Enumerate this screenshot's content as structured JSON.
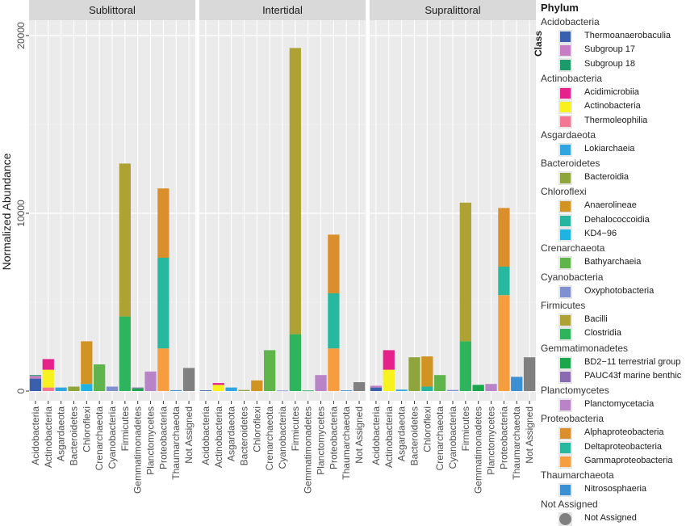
{
  "chart_data": {
    "type": "bar",
    "stacked": true,
    "facets": [
      "Sublittoral",
      "Intertidal",
      "Supralittoral"
    ],
    "categories": [
      "Acidobacteria",
      "Actinobacteria",
      "Asgardaeota",
      "Bacteroidetes",
      "Chloroflexi",
      "Crenarchaeota",
      "Cyanobacteria",
      "Firmicutes",
      "Gemmatimonadetes",
      "Planctomycetes",
      "Proteobacteria",
      "Thaumarchaeota",
      "Not Assigned"
    ],
    "ylabel": "Normalized Abundance",
    "xlabel": "",
    "ylim": [
      0,
      20500
    ],
    "yticks": [
      0,
      10000,
      20000
    ],
    "ytick_labels": [
      "0",
      "10000",
      "20000"
    ],
    "grid": true,
    "legend_position": "right",
    "legend_title": "Phylum",
    "legend_subtitle": "Class",
    "legend_groups": [
      {
        "phylum": "Acidobacteria",
        "classes": [
          "Thermoanaerobaculia",
          "Subgroup 17",
          "Subgroup 18"
        ]
      },
      {
        "phylum": "Actinobacteria",
        "classes": [
          "Acidimicrobiia",
          "Actinobacteria",
          "Thermoleophilia"
        ]
      },
      {
        "phylum": "Asgardaeota",
        "classes": [
          "Lokiarchaeia"
        ]
      },
      {
        "phylum": "Bacteroidetes",
        "classes": [
          "Bacteroidia"
        ]
      },
      {
        "phylum": "Chloroflexi",
        "classes": [
          "Anaerolineae",
          "Dehalococcoidia",
          "KD4−96"
        ]
      },
      {
        "phylum": "Crenarchaeota",
        "classes": [
          "Bathyarchaeia"
        ]
      },
      {
        "phylum": "Cyanobacteria",
        "classes": [
          "Oxyphotobacteria"
        ]
      },
      {
        "phylum": "Firmicutes",
        "classes": [
          "Bacilli",
          "Clostridia"
        ]
      },
      {
        "phylum": "Gemmatimonadetes",
        "classes": [
          "BD2−11 terrestrial group",
          "PAUC43f marine benthic"
        ]
      },
      {
        "phylum": "Planctomycetes",
        "classes": [
          "Planctomycetacia"
        ]
      },
      {
        "phylum": "Proteobacteria",
        "classes": [
          "Alphaproteobacteria",
          "Deltaproteobacteria",
          "Gammaproteobacteria"
        ]
      },
      {
        "phylum": "Thaumarchaeota",
        "classes": [
          "Nitrososphaeria"
        ]
      },
      {
        "phylum": "Not Assigned",
        "classes": [
          "Not Assigned"
        ],
        "shape": "circle"
      }
    ],
    "class_colors": {
      "Thermoanaerobaculia": "#3a5fad",
      "Subgroup 17": "#c77cc6",
      "Subgroup 18": "#1b9a6c",
      "Acidimicrobiia": "#e6218c",
      "Actinobacteria": "#f7f21d",
      "Thermoleophilia": "#f27792",
      "Lokiarchaeia": "#2fa6e0",
      "Bacteroidia": "#8da53a",
      "Anaerolineae": "#d19422",
      "Dehalococcoidia": "#27b5a0",
      "KD4−96": "#1fb3e3",
      "Bathyarchaeia": "#5fb44a",
      "Oxyphotobacteria": "#7f8fcf",
      "Bacilli": "#aea234",
      "Clostridia": "#2db45c",
      "BD2−11 terrestrial group": "#1aa64b",
      "PAUC43f marine benthic": "#8a6ab0",
      "Planctomycetacia": "#b884c7",
      "Alphaproteobacteria": "#db8f2c",
      "Deltaproteobacteria": "#26b9a0",
      "Gammaproteobacteria": "#f59d3f",
      "Nitrososphaeria": "#3b8fd3",
      "Not Assigned": "#808080"
    },
    "panel_bg": "#ebebeb",
    "strip_bg": "#d9d9d9",
    "data": [
      {
        "facet": "Sublittoral",
        "bars": [
          {
            "category": "Acidobacteria",
            "segments": [
              {
                "class": "Thermoanaerobaculia",
                "value": 700
              },
              {
                "class": "Subgroup 17",
                "value": 150
              },
              {
                "class": "Subgroup 18",
                "value": 50
              }
            ]
          },
          {
            "category": "Actinobacteria",
            "segments": [
              {
                "class": "Thermoleophilia",
                "value": 200
              },
              {
                "class": "Actinobacteria",
                "value": 1000
              },
              {
                "class": "Acidimicrobiia",
                "value": 600
              }
            ]
          },
          {
            "category": "Asgardaeota",
            "segments": [
              {
                "class": "Lokiarchaeia",
                "value": 200
              }
            ]
          },
          {
            "category": "Bacteroidetes",
            "segments": [
              {
                "class": "Bacteroidia",
                "value": 250
              }
            ]
          },
          {
            "category": "Chloroflexi",
            "segments": [
              {
                "class": "KD4−96",
                "value": 400
              },
              {
                "class": "Anaerolineae",
                "value": 2400
              }
            ]
          },
          {
            "category": "Crenarchaeota",
            "segments": [
              {
                "class": "Bathyarchaeia",
                "value": 1500
              }
            ]
          },
          {
            "category": "Cyanobacteria",
            "segments": [
              {
                "class": "Oxyphotobacteria",
                "value": 250
              }
            ]
          },
          {
            "category": "Firmicutes",
            "segments": [
              {
                "class": "Clostridia",
                "value": 4200
              },
              {
                "class": "Bacilli",
                "value": 8600
              }
            ]
          },
          {
            "category": "Gemmatimonadetes",
            "segments": [
              {
                "class": "BD2−11 terrestrial group",
                "value": 150
              },
              {
                "class": "PAUC43f marine benthic",
                "value": 50
              }
            ]
          },
          {
            "category": "Planctomycetes",
            "segments": [
              {
                "class": "Planctomycetacia",
                "value": 1100
              }
            ]
          },
          {
            "category": "Proteobacteria",
            "segments": [
              {
                "class": "Gammaproteobacteria",
                "value": 2400
              },
              {
                "class": "Deltaproteobacteria",
                "value": 5100
              },
              {
                "class": "Alphaproteobacteria",
                "value": 3900
              }
            ]
          },
          {
            "category": "Thaumarchaeota",
            "segments": [
              {
                "class": "Nitrososphaeria",
                "value": 50
              }
            ]
          },
          {
            "category": "Not Assigned",
            "segments": [
              {
                "class": "Not Assigned",
                "value": 1300
              }
            ]
          }
        ]
      },
      {
        "facet": "Intertidal",
        "bars": [
          {
            "category": "Acidobacteria",
            "segments": [
              {
                "class": "Thermoanaerobaculia",
                "value": 40
              }
            ]
          },
          {
            "category": "Actinobacteria",
            "segments": [
              {
                "class": "Actinobacteria",
                "value": 350
              },
              {
                "class": "Acidimicrobiia",
                "value": 100
              }
            ]
          },
          {
            "category": "Asgardaeota",
            "segments": [
              {
                "class": "Lokiarchaeia",
                "value": 200
              }
            ]
          },
          {
            "category": "Bacteroidetes",
            "segments": [
              {
                "class": "Bacteroidia",
                "value": 60
              }
            ]
          },
          {
            "category": "Chloroflexi",
            "segments": [
              {
                "class": "Anaerolineae",
                "value": 600
              }
            ]
          },
          {
            "category": "Crenarchaeota",
            "segments": [
              {
                "class": "Bathyarchaeia",
                "value": 2300
              }
            ]
          },
          {
            "category": "Cyanobacteria",
            "segments": [
              {
                "class": "Oxyphotobacteria",
                "value": 30
              }
            ]
          },
          {
            "category": "Firmicutes",
            "segments": [
              {
                "class": "Clostridia",
                "value": 3200
              },
              {
                "class": "Bacilli",
                "value": 16100
              }
            ]
          },
          {
            "category": "Gemmatimonadetes",
            "segments": [
              {
                "class": "BD2−11 terrestrial group",
                "value": 30
              }
            ]
          },
          {
            "category": "Planctomycetes",
            "segments": [
              {
                "class": "Planctomycetacia",
                "value": 900
              }
            ]
          },
          {
            "category": "Proteobacteria",
            "segments": [
              {
                "class": "Gammaproteobacteria",
                "value": 2400
              },
              {
                "class": "Deltaproteobacteria",
                "value": 3100
              },
              {
                "class": "Alphaproteobacteria",
                "value": 3300
              }
            ]
          },
          {
            "category": "Thaumarchaeota",
            "segments": [
              {
                "class": "Nitrososphaeria",
                "value": 40
              }
            ]
          },
          {
            "category": "Not Assigned",
            "segments": [
              {
                "class": "Not Assigned",
                "value": 500
              }
            ]
          }
        ]
      },
      {
        "facet": "Supralittoral",
        "bars": [
          {
            "category": "Acidobacteria",
            "segments": [
              {
                "class": "Thermoanaerobaculia",
                "value": 200
              },
              {
                "class": "Subgroup 17",
                "value": 100
              }
            ]
          },
          {
            "category": "Actinobacteria",
            "segments": [
              {
                "class": "Actinobacteria",
                "value": 1200
              },
              {
                "class": "Acidimicrobiia",
                "value": 1100
              }
            ]
          },
          {
            "category": "Asgardaeota",
            "segments": [
              {
                "class": "Lokiarchaeia",
                "value": 80
              }
            ]
          },
          {
            "category": "Bacteroidetes",
            "segments": [
              {
                "class": "Bacteroidia",
                "value": 1900
              }
            ]
          },
          {
            "category": "Chloroflexi",
            "segments": [
              {
                "class": "Dehalococcoidia",
                "value": 250
              },
              {
                "class": "Anaerolineae",
                "value": 1700
              }
            ]
          },
          {
            "category": "Crenarchaeota",
            "segments": [
              {
                "class": "Bathyarchaeia",
                "value": 900
              }
            ]
          },
          {
            "category": "Cyanobacteria",
            "segments": [
              {
                "class": "Oxyphotobacteria",
                "value": 60
              }
            ]
          },
          {
            "category": "Firmicutes",
            "segments": [
              {
                "class": "Clostridia",
                "value": 2800
              },
              {
                "class": "Bacilli",
                "value": 7800
              }
            ]
          },
          {
            "category": "Gemmatimonadetes",
            "segments": [
              {
                "class": "BD2−11 terrestrial group",
                "value": 350
              }
            ]
          },
          {
            "category": "Planctomycetes",
            "segments": [
              {
                "class": "Planctomycetacia",
                "value": 400
              }
            ]
          },
          {
            "category": "Proteobacteria",
            "segments": [
              {
                "class": "Gammaproteobacteria",
                "value": 5400
              },
              {
                "class": "Deltaproteobacteria",
                "value": 1600
              },
              {
                "class": "Alphaproteobacteria",
                "value": 3300
              }
            ]
          },
          {
            "category": "Thaumarchaeota",
            "segments": [
              {
                "class": "Nitrososphaeria",
                "value": 800
              }
            ]
          },
          {
            "category": "Not Assigned",
            "segments": [
              {
                "class": "Not Assigned",
                "value": 1900
              }
            ]
          }
        ]
      }
    ]
  }
}
